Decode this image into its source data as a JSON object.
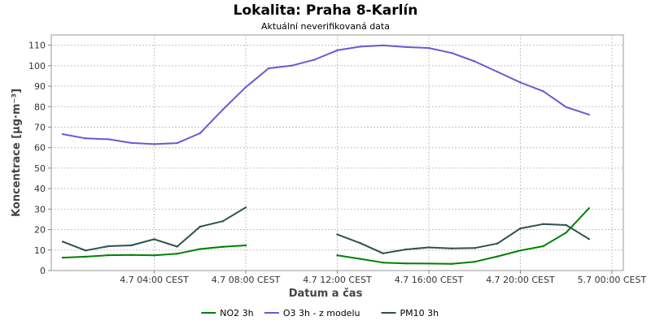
{
  "chart_data": {
    "type": "line",
    "title": "Lokalita: Praha 8-Karlín",
    "subtitle": "Aktuální neverifikovaná data",
    "xlabel": "Datum a čas",
    "ylabel": "Koncentrace [µg·m⁻³]",
    "ylim": [
      0,
      115
    ],
    "y_ticks": [
      0,
      10,
      20,
      30,
      40,
      50,
      60,
      70,
      80,
      90,
      100,
      110
    ],
    "x_unit": "hour since 4.7 00:00 CEST",
    "xlim": [
      -0.5,
      24.5
    ],
    "x_ticks": [
      {
        "x": 4,
        "label": "4.7 04:00 CEST"
      },
      {
        "x": 8,
        "label": "4.7 08:00 CEST"
      },
      {
        "x": 12,
        "label": "4.7 12:00 CEST"
      },
      {
        "x": 16,
        "label": "4.7 16:00 CEST"
      },
      {
        "x": 20,
        "label": "4.7 20:00 CEST"
      },
      {
        "x": 24,
        "label": "5.7 00:00 CEST"
      }
    ],
    "x": [
      0,
      1,
      2,
      3,
      4,
      5,
      6,
      7,
      8,
      9,
      10,
      11,
      12,
      13,
      14,
      15,
      16,
      17,
      18,
      19,
      20,
      21,
      22,
      23,
      24
    ],
    "series": [
      {
        "name": "NO2 3h",
        "color": "#008000",
        "values": [
          6.3,
          6.8,
          7.5,
          7.6,
          7.4,
          8.2,
          10.5,
          11.6,
          12.3,
          null,
          null,
          null,
          7.4,
          5.7,
          3.9,
          3.5,
          3.4,
          3.3,
          4.3,
          6.9,
          9.8,
          11.9,
          18.5,
          30.4,
          null
        ]
      },
      {
        "name": "O3 3h - z modelu",
        "color": "#6a5acd",
        "values": [
          66.6,
          64.5,
          64.1,
          62.3,
          61.7,
          62.2,
          67.0,
          78.6,
          89.5,
          98.7,
          100.0,
          102.9,
          107.5,
          109.3,
          109.9,
          109.1,
          108.6,
          106.2,
          102.1,
          97.0,
          91.8,
          87.5,
          79.8,
          76.1,
          null
        ]
      },
      {
        "name": "PM10 3h",
        "color": "#2f4f4f",
        "values": [
          14.1,
          9.8,
          11.9,
          12.3,
          15.3,
          11.7,
          21.4,
          24.1,
          30.8,
          null,
          null,
          null,
          17.6,
          13.4,
          8.4,
          10.3,
          11.3,
          10.8,
          11.0,
          13.2,
          20.6,
          22.7,
          22.2,
          15.4,
          null
        ]
      }
    ],
    "grid": true,
    "legend_position": "bottom-center"
  }
}
